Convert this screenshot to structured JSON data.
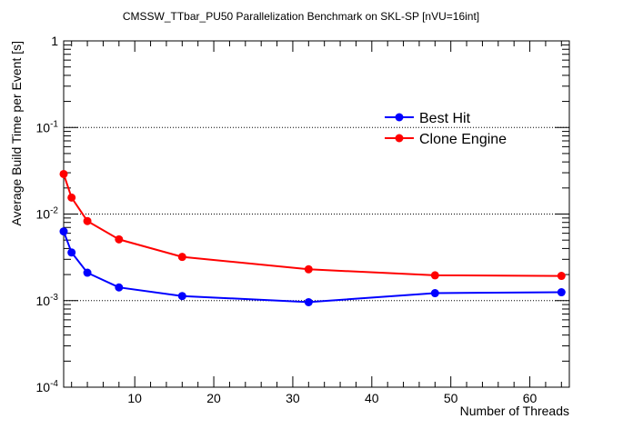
{
  "chart_data": {
    "type": "line",
    "title": "CMSSW_TTbar_PU50 Parallelization Benchmark on SKL-SP [nVU=16int]",
    "xlabel": "Number of Threads",
    "ylabel": "Average Build Time per Event [s]",
    "xlim": [
      1,
      65
    ],
    "ylim": [
      0.0001,
      1
    ],
    "yscale": "log",
    "grid": "y-major-dotted",
    "legend": "top-right",
    "x_ticks": [
      10,
      20,
      30,
      40,
      50,
      60
    ],
    "y_ticks": [
      {
        "value": 0.0001,
        "base": "10",
        "exp": "-4"
      },
      {
        "value": 0.001,
        "base": "10",
        "exp": "-3"
      },
      {
        "value": 0.01,
        "base": "10",
        "exp": "-2"
      },
      {
        "value": 0.1,
        "base": "10",
        "exp": "-1"
      },
      {
        "value": 1,
        "base": "1",
        "exp": ""
      }
    ],
    "x": [
      1,
      2,
      4,
      8,
      16,
      32,
      48,
      64
    ],
    "series": [
      {
        "name": "Best Hit",
        "color": "#0000ff",
        "values": [
          0.0063,
          0.0036,
          0.0021,
          0.00142,
          0.00113,
          0.00096,
          0.00122,
          0.00125
        ]
      },
      {
        "name": "Clone Engine",
        "color": "#ff0000",
        "values": [
          0.029,
          0.0155,
          0.0083,
          0.0051,
          0.0032,
          0.0023,
          0.00196,
          0.00193
        ]
      }
    ]
  }
}
